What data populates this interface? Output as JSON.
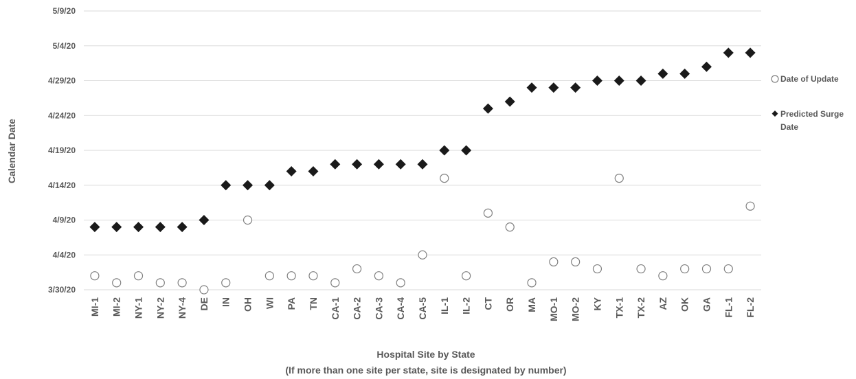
{
  "chart_data": {
    "type": "scatter",
    "title": "",
    "xlabel": "Hospital Site by State",
    "xlabel_line2": "(If more than one site per state, site is designated by number)",
    "ylabel": "Calendar Date",
    "categories": [
      "MI-1",
      "MI-2",
      "NY-1",
      "NY-2",
      "NY-4",
      "DE",
      "IN",
      "OH",
      "WI",
      "PA",
      "TN",
      "CA-1",
      "CA-2",
      "CA-3",
      "CA-4",
      "CA-5",
      "IL-1",
      "IL-2",
      "CT",
      "OR",
      "MA",
      "MO-1",
      "MO-2",
      "KY",
      "TX-1",
      "TX-2",
      "AZ",
      "OK",
      "GA",
      "FL-1",
      "FL-2"
    ],
    "y_ticks": [
      "3/30/20",
      "4/4/20",
      "4/9/20",
      "4/14/20",
      "4/19/20",
      "4/24/20",
      "4/29/20",
      "5/4/20",
      "5/9/20"
    ],
    "ylim": [
      "3/30/20",
      "5/9/20"
    ],
    "grid": "horizontal",
    "legend_position": "right",
    "series": [
      {
        "name": "Date of Update",
        "marker": "open-circle",
        "color": "#7f7f7f",
        "values": [
          "4/1/20",
          "3/31/20",
          "4/1/20",
          "3/31/20",
          "3/31/20",
          "3/30/20",
          "3/31/20",
          "4/9/20",
          "4/1/20",
          "4/1/20",
          "4/1/20",
          "3/31/20",
          "4/2/20",
          "4/1/20",
          "3/31/20",
          "4/4/20",
          "4/15/20",
          "4/1/20",
          "4/10/20",
          "4/8/20",
          "3/31/20",
          "4/3/20",
          "4/3/20",
          "4/2/20",
          "4/15/20",
          "4/2/20",
          "4/1/20",
          "4/2/20",
          "4/2/20",
          "4/2/20",
          "4/11/20"
        ]
      },
      {
        "name": "Predicted Surge",
        "name_line2": "Date",
        "marker": "filled-diamond",
        "color": "#1a1a1a",
        "values": [
          "4/8/20",
          "4/8/20",
          "4/8/20",
          "4/8/20",
          "4/8/20",
          "4/9/20",
          "4/14/20",
          "4/14/20",
          "4/14/20",
          "4/16/20",
          "4/16/20",
          "4/17/20",
          "4/17/20",
          "4/17/20",
          "4/17/20",
          "4/17/20",
          "4/19/20",
          "4/19/20",
          "4/25/20",
          "4/26/20",
          "4/28/20",
          "4/28/20",
          "4/28/20",
          "4/29/20",
          "4/29/20",
          "4/29/20",
          "4/30/20",
          "4/30/20",
          "5/1/20",
          "5/3/20",
          "5/3/20"
        ]
      }
    ]
  }
}
